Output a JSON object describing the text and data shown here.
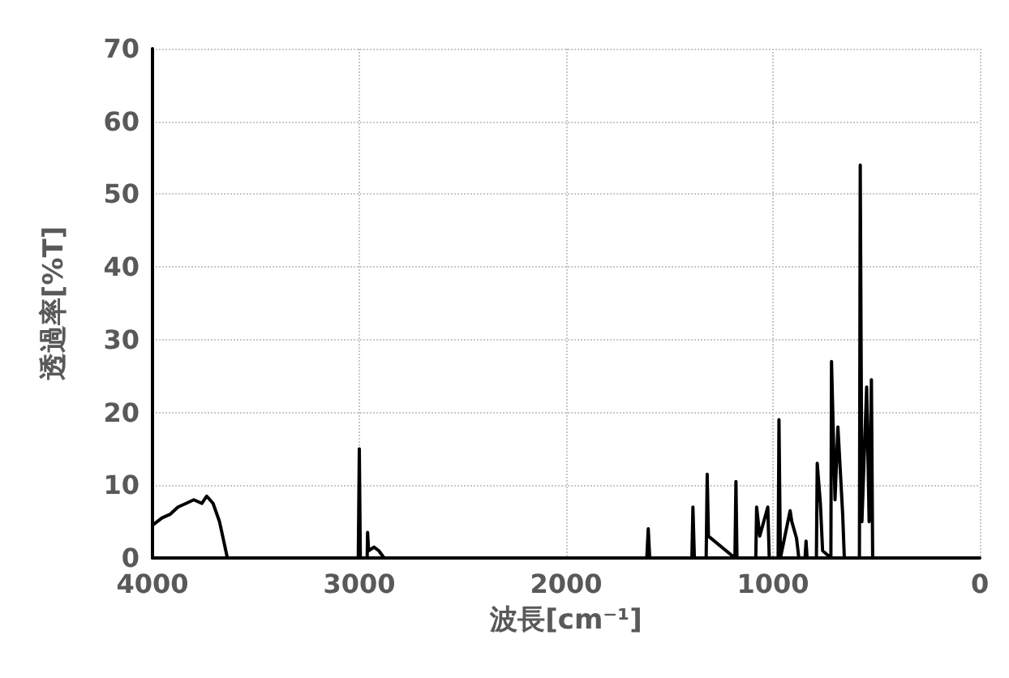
{
  "chart_data": {
    "type": "line",
    "xlabel": "波長[cm⁻¹]",
    "ylabel": "透過率[%T]",
    "x": [
      4000,
      3954,
      3915,
      3877,
      3838,
      3800,
      3761,
      3738,
      3707,
      3676,
      3653,
      3638,
      3005,
      3000,
      2995,
      2962,
      2960,
      2955,
      2929,
      2906,
      2880,
      1610,
      1603,
      1596,
      1392,
      1387,
      1380,
      1323,
      1318,
      1312,
      1184,
      1179,
      1174,
      1083,
      1079,
      1064,
      1025,
      1018,
      975,
      971,
      964,
      917,
      909,
      886,
      875,
      845,
      840,
      835,
      790,
      786,
      771,
      760,
      720,
      717,
      700,
      686,
      663,
      655,
      582,
      578,
      570,
      547,
      535,
      524,
      518,
      0
    ],
    "series": [
      {
        "color": "#000000",
        "values": [
          4.5,
          5.5,
          6,
          7,
          7.5,
          8,
          7.5,
          8.5,
          7.5,
          5,
          2,
          0,
          0,
          15,
          0,
          0,
          3.5,
          1,
          1.5,
          1,
          0,
          0,
          4,
          0,
          0,
          7,
          0,
          0,
          11.5,
          3,
          0,
          10.5,
          0,
          0,
          7,
          3,
          7,
          0,
          0,
          19,
          0,
          6.5,
          5,
          2.7,
          0,
          0,
          2.3,
          0,
          0,
          13,
          7.6,
          1,
          0,
          27,
          8,
          18,
          6,
          0,
          0,
          54,
          5,
          23.5,
          5,
          24.5,
          0,
          0
        ]
      }
    ],
    "xlim": [
      4000,
      0
    ],
    "xticks": [
      4000,
      3000,
      2000,
      1000,
      0
    ],
    "ylim": [
      0,
      70
    ],
    "yticks": [
      0,
      10,
      20,
      30,
      40,
      50,
      60,
      70
    ],
    "grid": true,
    "marker": "none",
    "line_style": "solid"
  }
}
